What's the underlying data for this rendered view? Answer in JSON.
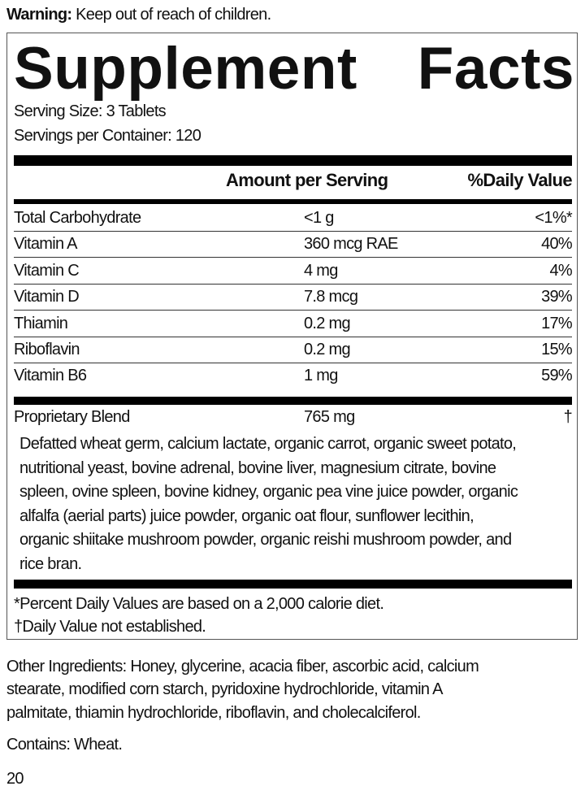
{
  "warning": {
    "label": "Warning:",
    "text": " Keep out of reach of children."
  },
  "title": {
    "word1": "Supplement",
    "word2": "Facts"
  },
  "serving_size": "Serving Size: 3 Tablets",
  "servings_per_container": "Servings per Container: 120",
  "headers": {
    "amount": "Amount per Serving",
    "dv": "%Daily Value"
  },
  "nutrients": [
    {
      "name": "Total Carbohydrate",
      "amount": "<1 g",
      "dv": "<1%*"
    },
    {
      "name": "Vitamin A",
      "amount": "360 mcg RAE",
      "dv": "40%"
    },
    {
      "name": "Vitamin C",
      "amount": "4 mg",
      "dv": "4%"
    },
    {
      "name": "Vitamin D",
      "amount": "7.8 mcg",
      "dv": "39%"
    },
    {
      "name": "Thiamin",
      "amount": "0.2 mg",
      "dv": "17%"
    },
    {
      "name": "Riboflavin",
      "amount": "0.2 mg",
      "dv": "15%"
    },
    {
      "name": "Vitamin B6",
      "amount": "1 mg",
      "dv": "59%"
    }
  ],
  "blend": {
    "name": "Proprietary Blend",
    "amount": "765 mg",
    "dv": "†",
    "ingredients_lines": [
      "Defatted wheat germ, calcium lactate, organic carrot, organic sweet potato,",
      "nutritional yeast, bovine adrenal, bovine liver, magnesium citrate, bovine",
      "spleen, ovine spleen, bovine kidney, organic pea vine juice powder, organic",
      "alfalfa (aerial parts) juice powder, organic oat flour, sunflower lecithin,",
      "organic shiitake mushroom powder, organic reishi mushroom powder, and",
      "rice bran."
    ]
  },
  "footnotes": [
    "*Percent Daily Values are based on a 2,000 calorie diet.",
    "†Daily Value not established."
  ],
  "other_ingredients_lines": [
    "Other Ingredients: Honey, glycerine, acacia fiber, ascorbic acid, calcium",
    "stearate,  modified corn starch, pyridoxine hydrochloride, vitamin A",
    "palmitate, thiamin hydrochloride, riboflavin, and cholecalciferol."
  ],
  "contains": "Contains: Wheat.",
  "page_number": "20"
}
